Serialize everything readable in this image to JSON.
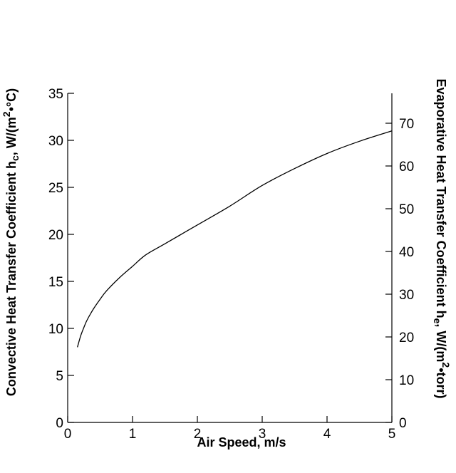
{
  "chart_data": {
    "type": "line",
    "x_title": "Air Speed, m/s",
    "y_left_title": "Convective Heat Transfer Coefficient h",
    "y_left_sub": "c",
    "y_left_units_pre": ", W/(m",
    "y_left_units_sup": "2",
    "y_left_units_post": "•°C)",
    "y_right_title": "Evaporative Heat Transfer Coefficient h",
    "y_right_sub": "e",
    "y_right_units_pre": ", W/(m",
    "y_right_units_sup": "2",
    "y_right_units_post": "•torr)",
    "xlim": [
      0,
      5
    ],
    "ylim_left": [
      0,
      35
    ],
    "ylim_right": [
      0,
      77
    ],
    "x_ticks": [
      "0",
      "1",
      "2",
      "3",
      "4",
      "5"
    ],
    "y_left_ticks": [
      "0",
      "5",
      "10",
      "15",
      "20",
      "25",
      "30",
      "35"
    ],
    "y_right_ticks": [
      "0",
      "10",
      "20",
      "30",
      "40",
      "50",
      "60",
      "70"
    ],
    "grid": false,
    "series": [
      {
        "axis": "left",
        "x": [
          0.15,
          0.2,
          0.25,
          0.3,
          0.4,
          0.5,
          0.6,
          0.8,
          1.0,
          1.2,
          1.5,
          2.0,
          2.5,
          3.0,
          3.5,
          4.0,
          4.5,
          5.0
        ],
        "y": [
          8.0,
          9.2,
          10.1,
          10.9,
          12.1,
          13.1,
          14.0,
          15.4,
          16.6,
          17.8,
          19.0,
          21.0,
          23.0,
          25.2,
          27.0,
          28.6,
          29.9,
          31.0
        ]
      }
    ]
  }
}
